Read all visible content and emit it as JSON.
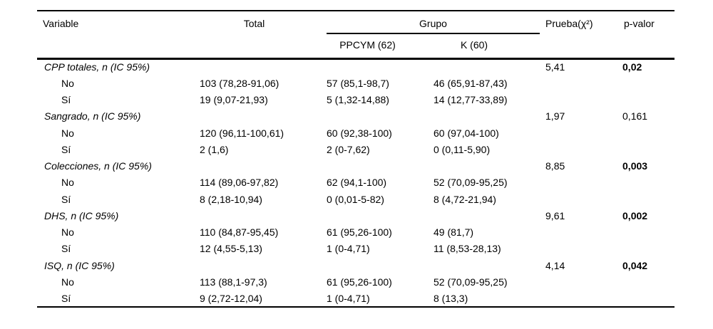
{
  "colors": {
    "background": "#ffffff",
    "text": "#000000",
    "rule": "#000000"
  },
  "table": {
    "headers": {
      "variable": "Variable",
      "total": "Total",
      "grupo": "Grupo",
      "ppcym": "PPCYM (62)",
      "k": "K (60)",
      "prueba": "Prueba(χ²)",
      "pvalor": "p-valor"
    },
    "rows": [
      {
        "label": "CPP totales, n (IC 95%)",
        "total": "",
        "ppcym": "",
        "k": "",
        "prueba": "5,41",
        "pvalor": "0,02"
      },
      {
        "label": "No",
        "total": "103 (78,28-91,06)",
        "ppcym": "57 (85,1-98,7)",
        "k": "46 (65,91-87,43)",
        "prueba": "",
        "pvalor": ""
      },
      {
        "label": "Sí",
        "total": "19 (9,07-21,93)",
        "ppcym": "5 (1,32-14,88)",
        "k": "14 (12,77-33,89)",
        "prueba": "",
        "pvalor": ""
      },
      {
        "label": "Sangrado, n (IC 95%)",
        "total": "",
        "ppcym": "",
        "k": "",
        "prueba": "1,97",
        "pvalor": "0,161"
      },
      {
        "label": "No",
        "total": "120 (96,11-100,61)",
        "ppcym": "60 (92,38-100)",
        "k": "60 (97,04-100)",
        "prueba": "",
        "pvalor": ""
      },
      {
        "label": "Sí",
        "total": "2 (1,6)",
        "ppcym": "2 (0-7,62)",
        "k": "0 (0,11-5,90)",
        "prueba": "",
        "pvalor": ""
      },
      {
        "label": "Colecciones, n (IC 95%)",
        "total": "",
        "ppcym": "",
        "k": "",
        "prueba": "8,85",
        "pvalor": "0,003"
      },
      {
        "label": "No",
        "total": "114 (89,06-97,82)",
        "ppcym": "62 (94,1-100)",
        "k": "52 (70,09-95,25)",
        "prueba": "",
        "pvalor": ""
      },
      {
        "label": "Sí",
        "total": "8 (2,18-10,94)",
        "ppcym": "0 (0,01-5-82)",
        "k": "8 (4,72-21,94)",
        "prueba": "",
        "pvalor": ""
      },
      {
        "label": "DHS, n (IC 95%)",
        "total": "",
        "ppcym": "",
        "k": "",
        "prueba": "9,61",
        "pvalor": "0,002"
      },
      {
        "label": "No",
        "total": "110 (84,87-95,45)",
        "ppcym": "61 (95,26-100)",
        "k": "49 (81,7)",
        "prueba": "",
        "pvalor": ""
      },
      {
        "label": "Sí",
        "total": "12 (4,55-5,13)",
        "ppcym": "1 (0-4,71)",
        "k": "11 (8,53-28,13)",
        "prueba": "",
        "pvalor": ""
      },
      {
        "label": "ISQ, n (IC 95%)",
        "total": "",
        "ppcym": "",
        "k": "",
        "prueba": "4,14",
        "pvalor": "0,042"
      },
      {
        "label": "No",
        "total": "113 (88,1-97,3)",
        "ppcym": "61 (95,26-100)",
        "k": "52 (70,09-95,25)",
        "prueba": "",
        "pvalor": ""
      },
      {
        "label": "Sí",
        "total": "9 (2,72-12,04)",
        "ppcym": "1 (0-4,71)",
        "k": "8 (13,3)",
        "prueba": "",
        "pvalor": ""
      }
    ]
  }
}
